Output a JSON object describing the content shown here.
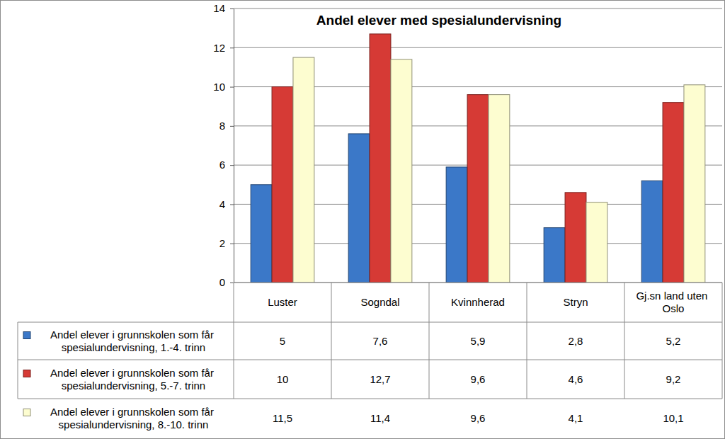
{
  "chart_data": {
    "type": "bar",
    "title": "Andel elever med spesialundervisning",
    "categories": [
      "Luster",
      "Sogndal",
      "Kvinnherad",
      "Stryn",
      "Gj.sn land uten Oslo"
    ],
    "series": [
      {
        "name": "Andel elever i grunnskolen som får spesialundervisning, 1.-4. trinn",
        "color": "#3b78c8",
        "values": [
          5,
          7.6,
          5.9,
          2.8,
          5.2
        ],
        "value_labels": [
          "5",
          "7,6",
          "5,9",
          "2,8",
          "5,2"
        ]
      },
      {
        "name": "Andel elever i grunnskolen som får spesialundervisning, 5.-7. trinn",
        "color": "#d63a35",
        "values": [
          10,
          12.7,
          9.6,
          4.6,
          9.2
        ],
        "value_labels": [
          "10",
          "12,7",
          "9,6",
          "4,6",
          "9,2"
        ]
      },
      {
        "name": "Andel elever i grunnskolen som får spesialundervisning, 8.-10. trinn",
        "color": "#fdfdd0",
        "values": [
          11.5,
          11.4,
          9.6,
          4.1,
          10.1
        ],
        "value_labels": [
          "11,5",
          "11,4",
          "9,6",
          "4,1",
          "10,1"
        ]
      }
    ],
    "ylim": [
      0,
      14
    ],
    "yticks": [
      0,
      2,
      4,
      6,
      8,
      10,
      12,
      14
    ],
    "grid": true,
    "legend": "bottom"
  }
}
